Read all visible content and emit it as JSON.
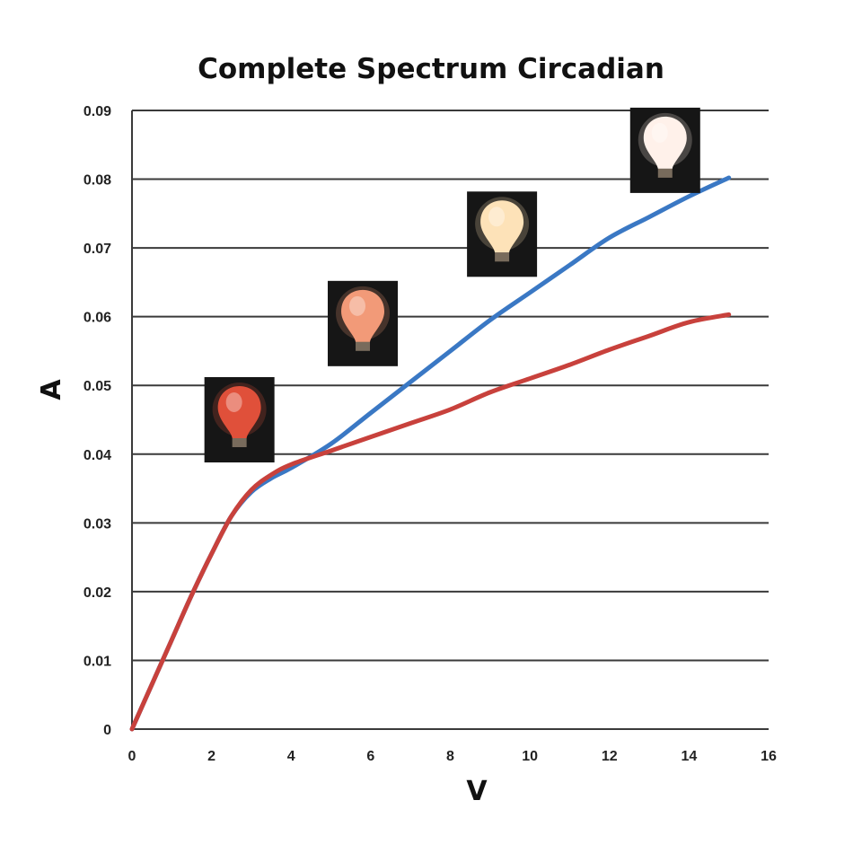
{
  "chart_data": {
    "type": "line",
    "title": "Complete Spectrum Circadian",
    "xlabel": "V",
    "ylabel": "A",
    "xlim": [
      0,
      16
    ],
    "ylim": [
      0,
      0.09
    ],
    "xticks": [
      "0",
      "2",
      "4",
      "6",
      "8",
      "10",
      "12",
      "14",
      "16"
    ],
    "yticks": [
      "0",
      "0.01",
      "0.02",
      "0.03",
      "0.04",
      "0.05",
      "0.06",
      "0.07",
      "0.08",
      "0.09"
    ],
    "grid": "horizontal",
    "legend": "none",
    "series": [
      {
        "color": "#3a78c4",
        "x": [
          0,
          0.5,
          1,
          1.5,
          2,
          2.5,
          3,
          3.5,
          4,
          5,
          6,
          7,
          8,
          9,
          10,
          11,
          12,
          13,
          14,
          15
        ],
        "y": [
          0,
          0.0065,
          0.013,
          0.0195,
          0.0255,
          0.031,
          0.0345,
          0.0365,
          0.038,
          0.0415,
          0.046,
          0.0505,
          0.055,
          0.0595,
          0.0635,
          0.0675,
          0.0715,
          0.0745,
          0.0775,
          0.0802
        ]
      },
      {
        "color": "#c8413c",
        "x": [
          0,
          0.5,
          1,
          1.5,
          2,
          2.5,
          3,
          3.5,
          4,
          5,
          6,
          7,
          8,
          9,
          10,
          11,
          12,
          13,
          14,
          15
        ],
        "y": [
          0,
          0.0065,
          0.013,
          0.0195,
          0.0255,
          0.031,
          0.0348,
          0.037,
          0.0385,
          0.0405,
          0.0425,
          0.0445,
          0.0465,
          0.049,
          0.051,
          0.053,
          0.0552,
          0.0572,
          0.0592,
          0.0603
        ]
      }
    ],
    "bulb_images": [
      {
        "name": "red-glow-bulb",
        "glow_color": "#e0503a",
        "at_x": 2.7,
        "at_y": 0.045
      },
      {
        "name": "orange-glow-bulb",
        "glow_color": "#f29a78",
        "at_x": 5.8,
        "at_y": 0.059
      },
      {
        "name": "warm-glow-bulb",
        "glow_color": "#fde2b8",
        "at_x": 9.3,
        "at_y": 0.072
      },
      {
        "name": "white-glow-bulb",
        "glow_color": "#fff1ea",
        "at_x": 13.4,
        "at_y": 0.0842
      }
    ]
  }
}
